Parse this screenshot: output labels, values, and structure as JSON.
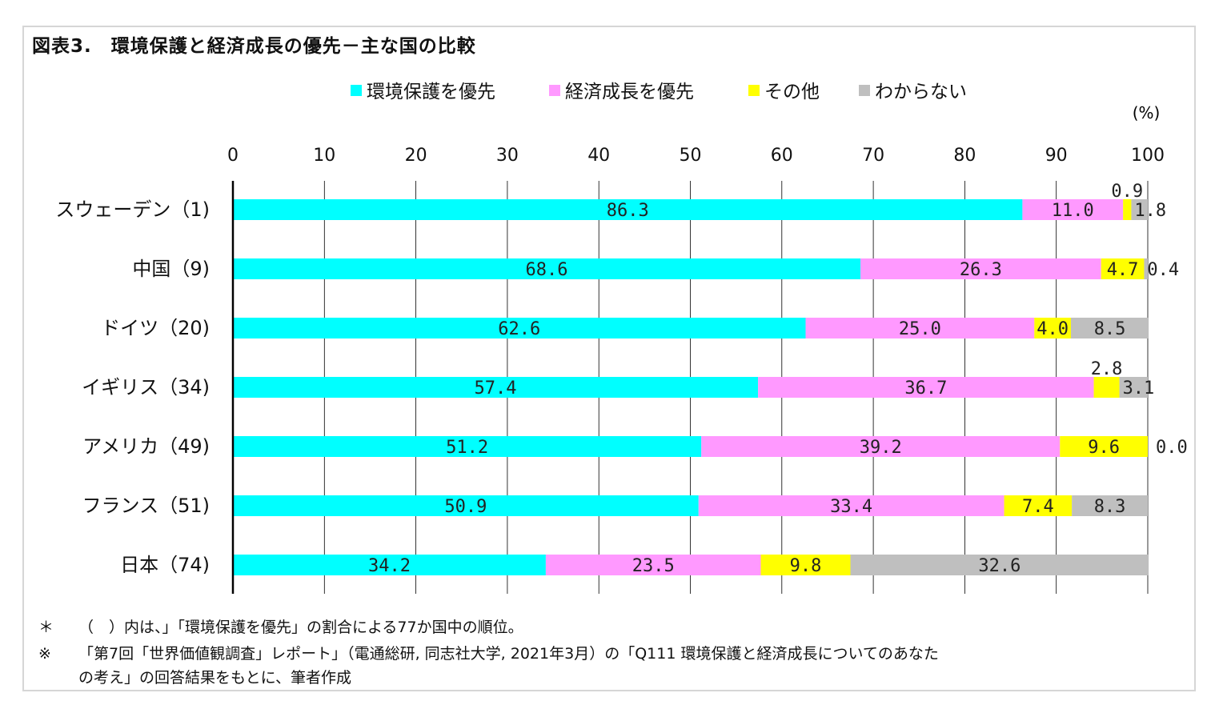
{
  "title": "図表3.　環境保護と経済成長の優先－主な国の比較",
  "colors": {
    "series": [
      "#00ffff",
      "#ff99ff",
      "#ffff00",
      "#bfbfbf"
    ],
    "axis": "#000000",
    "grid": "#000000"
  },
  "chart_data": {
    "type": "bar",
    "orientation": "horizontal",
    "stacked": true,
    "unit_label": "(%)",
    "xlim": [
      0,
      100
    ],
    "xticks": [
      0,
      10,
      20,
      30,
      40,
      50,
      60,
      70,
      80,
      90,
      100
    ],
    "legend_position": "top",
    "categories": [
      "スウェーデン（1)",
      "中国（9)",
      "ドイツ（20)",
      "イギリス（34)",
      "アメリカ（49)",
      "フランス（51)",
      "日本（74)"
    ],
    "series": [
      {
        "name": "環境保護を優先",
        "values": [
          86.3,
          68.6,
          62.6,
          57.4,
          51.2,
          50.9,
          34.2
        ]
      },
      {
        "name": "経済成長を優先",
        "values": [
          11.0,
          26.3,
          25.0,
          36.7,
          39.2,
          33.4,
          23.5
        ]
      },
      {
        "name": "その他",
        "values": [
          0.9,
          4.7,
          4.0,
          2.8,
          9.6,
          7.4,
          9.8
        ]
      },
      {
        "name": "わからない",
        "values": [
          1.8,
          0.4,
          8.5,
          3.1,
          0.0,
          8.3,
          32.6
        ]
      }
    ]
  },
  "notes": [
    {
      "mark": "＊",
      "text": "（　）内は、」「環境保護を優先」の割合による77か国中の順位。"
    },
    {
      "mark": "※",
      "text": "「第7回「世界価値観調査」レポート」（電通総研, 同志社大学, 2021年3月）の「Q111 環境保護と経済成長についてのあなた"
    },
    {
      "mark": "",
      "text": "の考え」の回答結果をもとに、筆者作成"
    }
  ]
}
